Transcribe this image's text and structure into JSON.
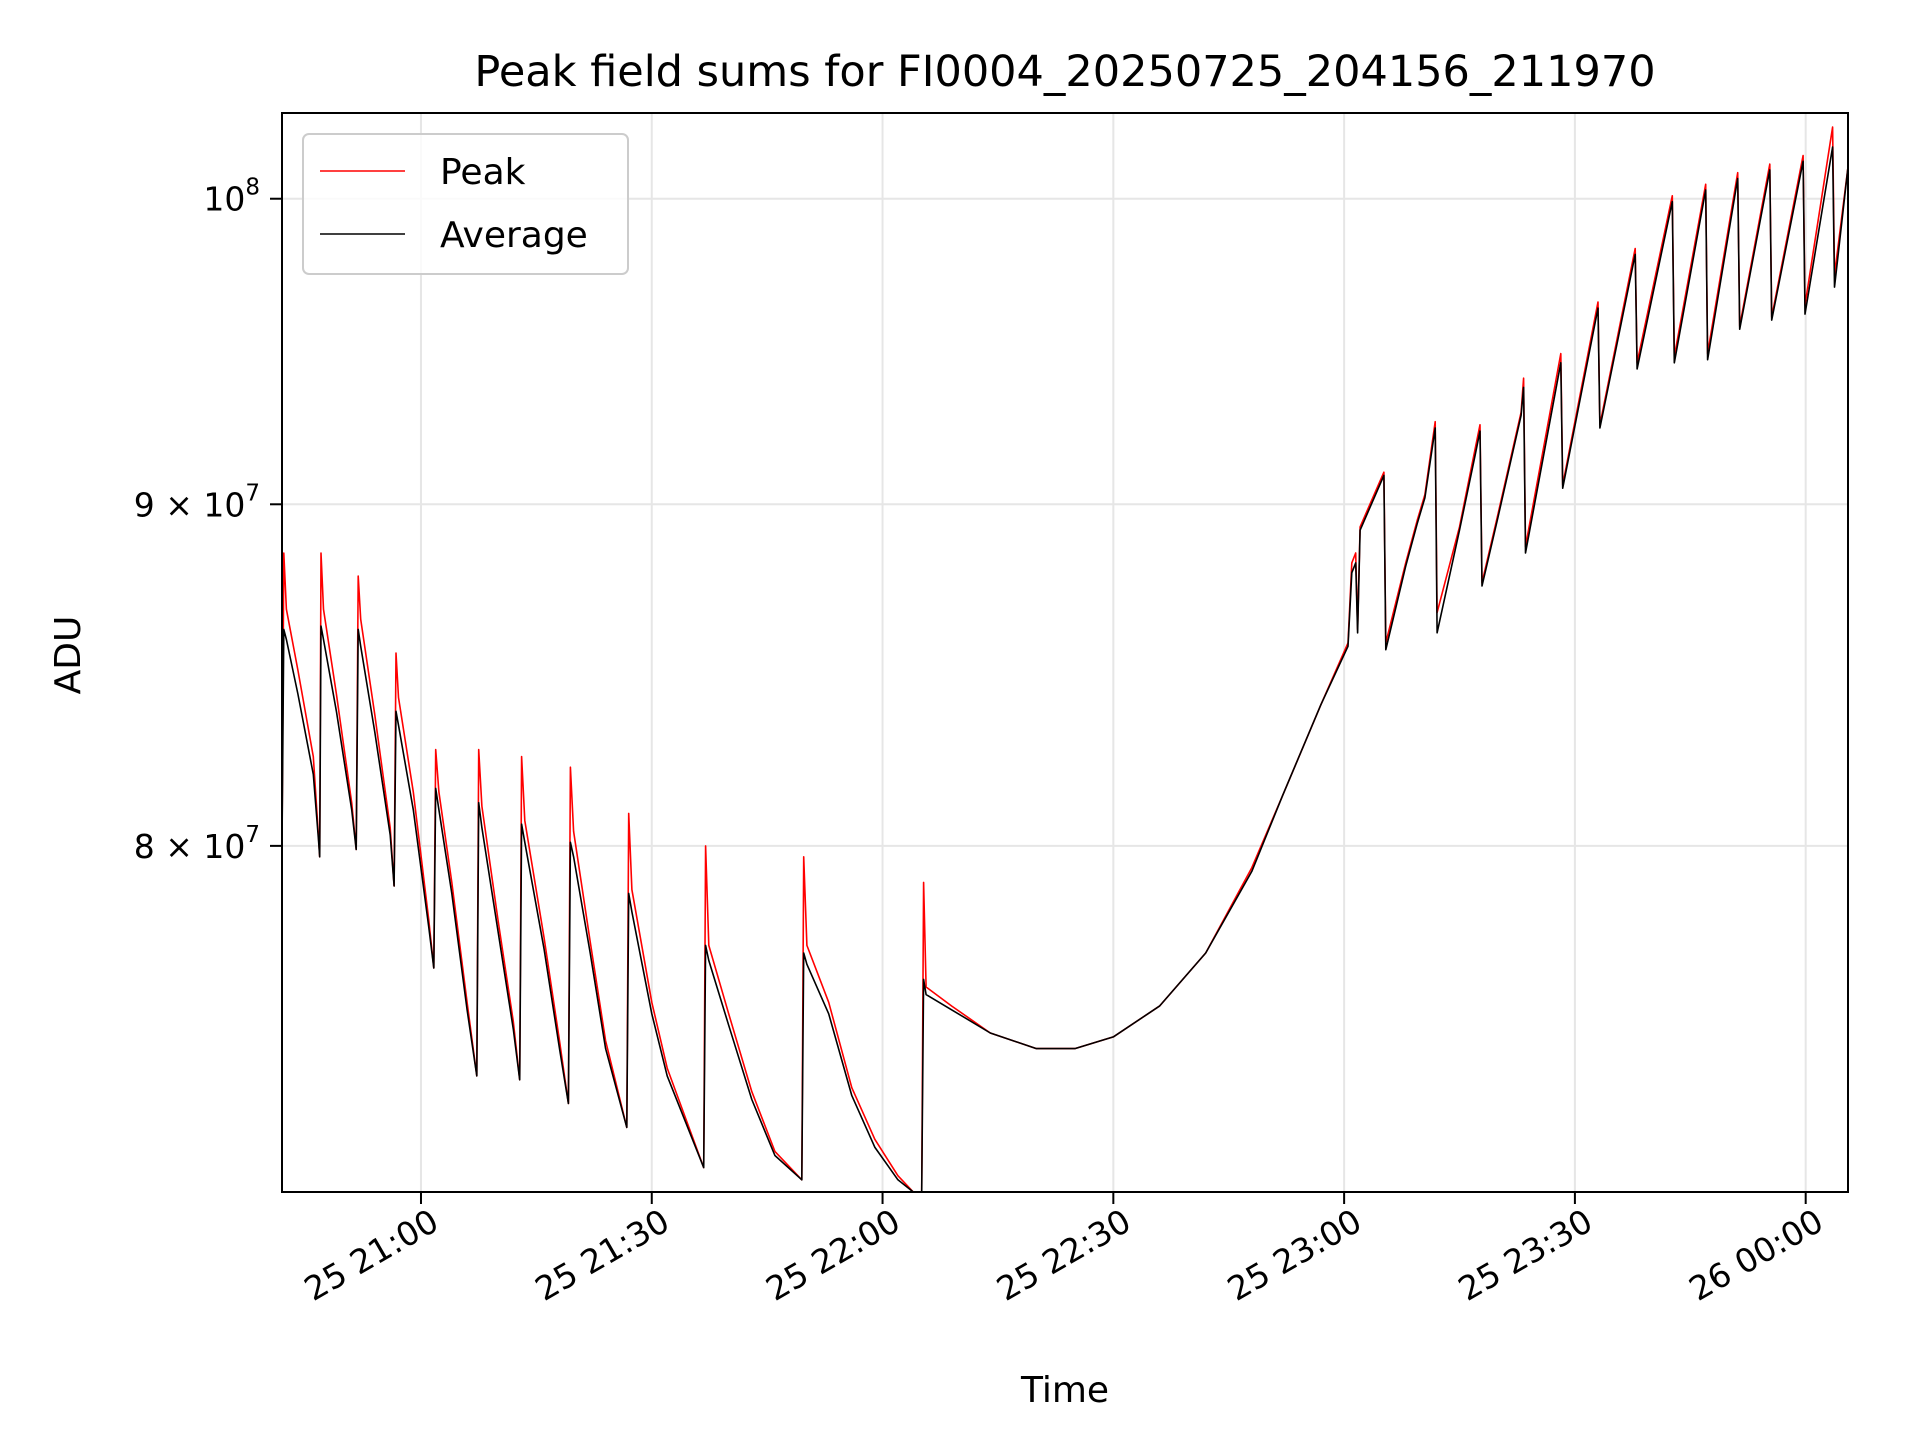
{
  "chart_data": {
    "type": "line",
    "title": "Peak field sums for FI0004_20250725_204156_211970",
    "xlabel": "Time",
    "ylabel": "ADU",
    "x_tick_labels": [
      "25 21:00",
      "25 21:30",
      "25 22:00",
      "25 22:30",
      "25 23:00",
      "25 23:30",
      "26 00:00"
    ],
    "x_tick_values": [
      "2025-07-25 21:00",
      "2025-07-25 21:30",
      "2025-07-25 22:00",
      "2025-07-25 22:30",
      "2025-07-25 23:00",
      "2025-07-25 23:30",
      "2025-07-26 00:00"
    ],
    "y_tick_labels": [
      {
        "base": "8 × 10",
        "exp": "7",
        "value": 80000000
      },
      {
        "base": "9 × 10",
        "exp": "7",
        "value": 90000000
      },
      {
        "base": "10",
        "exp": "8",
        "value": 100000000
      }
    ],
    "xlim": [
      "2025-07-25 20:41:56",
      "2025-07-26 00:05:30"
    ],
    "ylim": [
      71000000,
      103000000
    ],
    "yscale": "log",
    "grid": true,
    "legend_position": "top-left",
    "series": [
      {
        "name": "Peak",
        "color": "#ff0000",
        "points": [
          [
            "2025-07-25 20:41:56",
            80000000
          ],
          [
            "2025-07-25 20:42:10",
            88500000
          ],
          [
            "2025-07-25 20:42:30",
            86800000
          ],
          [
            "2025-07-25 20:44:00",
            85000000
          ],
          [
            "2025-07-25 20:46:00",
            82500000
          ],
          [
            "2025-07-25 20:46:40",
            80300000
          ],
          [
            "2025-07-25 20:46:50",
            79700000
          ],
          [
            "2025-07-25 20:47:00",
            88500000
          ],
          [
            "2025-07-25 20:47:20",
            86800000
          ],
          [
            "2025-07-25 20:49:00",
            84300000
          ],
          [
            "2025-07-25 20:51:00",
            81200000
          ],
          [
            "2025-07-25 20:51:35",
            79900000
          ],
          [
            "2025-07-25 20:51:50",
            87800000
          ],
          [
            "2025-07-25 20:52:10",
            86500000
          ],
          [
            "2025-07-25 20:54:00",
            83700000
          ],
          [
            "2025-07-25 20:56:00",
            80500000
          ],
          [
            "2025-07-25 20:56:30",
            78900000
          ],
          [
            "2025-07-25 20:56:45",
            85500000
          ],
          [
            "2025-07-25 20:57:05",
            84200000
          ],
          [
            "2025-07-25 20:59:00",
            81500000
          ],
          [
            "2025-07-25 21:01:00",
            78000000
          ],
          [
            "2025-07-25 21:01:40",
            76700000
          ],
          [
            "2025-07-25 21:01:55",
            82700000
          ],
          [
            "2025-07-25 21:02:20",
            81500000
          ],
          [
            "2025-07-25 21:04:00",
            79000000
          ],
          [
            "2025-07-25 21:06:00",
            75800000
          ],
          [
            "2025-07-25 21:07:15",
            73900000
          ],
          [
            "2025-07-25 21:07:30",
            82700000
          ],
          [
            "2025-07-25 21:07:55",
            81100000
          ],
          [
            "2025-07-25 21:10:00",
            78000000
          ],
          [
            "2025-07-25 21:12:00",
            75300000
          ],
          [
            "2025-07-25 21:12:50",
            73800000
          ],
          [
            "2025-07-25 21:13:05",
            82500000
          ],
          [
            "2025-07-25 21:13:30",
            80700000
          ],
          [
            "2025-07-25 21:16:00",
            77500000
          ],
          [
            "2025-07-25 21:18:00",
            74800000
          ],
          [
            "2025-07-25 21:19:10",
            73200000
          ],
          [
            "2025-07-25 21:19:25",
            82200000
          ],
          [
            "2025-07-25 21:19:50",
            80400000
          ],
          [
            "2025-07-25 21:22:00",
            77400000
          ],
          [
            "2025-07-25 21:24:00",
            74800000
          ],
          [
            "2025-07-25 21:26:45",
            72600000
          ],
          [
            "2025-07-25 21:27:00",
            80900000
          ],
          [
            "2025-07-25 21:27:25",
            78800000
          ],
          [
            "2025-07-25 21:30:00",
            75800000
          ],
          [
            "2025-07-25 21:32:00",
            74100000
          ],
          [
            "2025-07-25 21:36:45",
            71600000
          ],
          [
            "2025-07-25 21:37:00",
            80000000
          ],
          [
            "2025-07-25 21:37:25",
            77300000
          ],
          [
            "2025-07-25 21:40:00",
            75500000
          ],
          [
            "2025-07-25 21:43:00",
            73500000
          ],
          [
            "2025-07-25 21:46:00",
            72000000
          ],
          [
            "2025-07-25 21:49:30",
            71300000
          ],
          [
            "2025-07-25 21:49:45",
            79700000
          ],
          [
            "2025-07-25 21:50:10",
            77300000
          ],
          [
            "2025-07-25 21:53:00",
            75800000
          ],
          [
            "2025-07-25 21:56:00",
            73600000
          ],
          [
            "2025-07-25 21:59:00",
            72300000
          ],
          [
            "2025-07-25 22:02:00",
            71400000
          ],
          [
            "2025-07-25 22:04:00",
            71000000
          ],
          [
            "2025-07-25 22:05:05",
            71000000
          ],
          [
            "2025-07-25 22:05:20",
            79000000
          ],
          [
            "2025-07-25 22:05:40",
            76200000
          ],
          [
            "2025-07-25 22:09:00",
            75700000
          ],
          [
            "2025-07-25 22:14:00",
            75000000
          ],
          [
            "2025-07-25 22:20:00",
            74600000
          ],
          [
            "2025-07-25 22:25:00",
            74600000
          ],
          [
            "2025-07-25 22:30:00",
            74900000
          ],
          [
            "2025-07-25 22:36:00",
            75700000
          ],
          [
            "2025-07-25 22:42:00",
            77100000
          ],
          [
            "2025-07-25 22:48:00",
            79400000
          ],
          [
            "2025-07-25 22:52:00",
            81400000
          ],
          [
            "2025-07-25 22:57:00",
            84000000
          ],
          [
            "2025-07-25 23:00:30",
            85800000
          ],
          [
            "2025-07-25 23:01:00",
            88200000
          ],
          [
            "2025-07-25 23:01:30",
            88500000
          ],
          [
            "2025-07-25 23:01:45",
            86200000
          ],
          [
            "2025-07-25 23:02:05",
            89300000
          ],
          [
            "2025-07-25 23:05:10",
            91000000
          ],
          [
            "2025-07-25 23:05:25",
            85800000
          ],
          [
            "2025-07-25 23:08:00",
            88200000
          ],
          [
            "2025-07-25 23:09:30",
            89500000
          ],
          [
            "2025-07-25 23:10:30",
            90300000
          ],
          [
            "2025-07-25 23:11:50",
            92600000
          ],
          [
            "2025-07-25 23:12:05",
            86700000
          ],
          [
            "2025-07-25 23:15:00",
            89300000
          ],
          [
            "2025-07-25 23:17:00",
            91700000
          ],
          [
            "2025-07-25 23:17:40",
            92500000
          ],
          [
            "2025-07-25 23:17:55",
            87600000
          ],
          [
            "2025-07-25 23:20:00",
            89700000
          ],
          [
            "2025-07-25 23:23:00",
            92900000
          ],
          [
            "2025-07-25 23:23:20",
            94000000
          ],
          [
            "2025-07-25 23:23:35",
            88700000
          ],
          [
            "2025-07-25 23:28:10",
            94800000
          ],
          [
            "2025-07-25 23:28:25",
            90600000
          ],
          [
            "2025-07-25 23:33:00",
            96500000
          ],
          [
            "2025-07-25 23:33:15",
            92500000
          ],
          [
            "2025-07-25 23:37:50",
            98300000
          ],
          [
            "2025-07-25 23:38:05",
            94500000
          ],
          [
            "2025-07-25 23:42:40",
            100100000
          ],
          [
            "2025-07-25 23:42:55",
            94700000
          ],
          [
            "2025-07-25 23:47:00",
            100500000
          ],
          [
            "2025-07-25 23:47:15",
            94800000
          ],
          [
            "2025-07-25 23:51:10",
            100900000
          ],
          [
            "2025-07-25 23:51:25",
            95700000
          ],
          [
            "2025-07-25 23:55:20",
            101200000
          ],
          [
            "2025-07-25 23:55:35",
            96000000
          ],
          [
            "2025-07-25 23:59:40",
            101500000
          ],
          [
            "2025-07-25 23:59:55",
            96400000
          ],
          [
            "2025-07-26 00:03:30",
            102500000
          ],
          [
            "2025-07-26 00:03:45",
            97400000
          ],
          [
            "2025-07-26 00:05:30",
            101100000
          ]
        ]
      },
      {
        "name": "Average",
        "color": "#000000",
        "points": [
          [
            "2025-07-25 20:41:56",
            80000000
          ],
          [
            "2025-07-25 20:42:10",
            86200000
          ],
          [
            "2025-07-25 20:42:30",
            85900000
          ],
          [
            "2025-07-25 20:44:00",
            84300000
          ],
          [
            "2025-07-25 20:46:00",
            82000000
          ],
          [
            "2025-07-25 20:46:40",
            80200000
          ],
          [
            "2025-07-25 20:46:50",
            79700000
          ],
          [
            "2025-07-25 20:47:00",
            86300000
          ],
          [
            "2025-07-25 20:47:20",
            85900000
          ],
          [
            "2025-07-25 20:49:00",
            83800000
          ],
          [
            "2025-07-25 20:51:00",
            81000000
          ],
          [
            "2025-07-25 20:51:35",
            79900000
          ],
          [
            "2025-07-25 20:51:50",
            86200000
          ],
          [
            "2025-07-25 20:52:10",
            85700000
          ],
          [
            "2025-07-25 20:54:00",
            83200000
          ],
          [
            "2025-07-25 20:56:00",
            80300000
          ],
          [
            "2025-07-25 20:56:30",
            78900000
          ],
          [
            "2025-07-25 20:56:45",
            83800000
          ],
          [
            "2025-07-25 20:57:05",
            83400000
          ],
          [
            "2025-07-25 20:59:00",
            81000000
          ],
          [
            "2025-07-25 21:01:00",
            77800000
          ],
          [
            "2025-07-25 21:01:40",
            76700000
          ],
          [
            "2025-07-25 21:01:55",
            81600000
          ],
          [
            "2025-07-25 21:02:20",
            81000000
          ],
          [
            "2025-07-25 21:04:00",
            78700000
          ],
          [
            "2025-07-25 21:06:00",
            75600000
          ],
          [
            "2025-07-25 21:07:15",
            73900000
          ],
          [
            "2025-07-25 21:07:30",
            81200000
          ],
          [
            "2025-07-25 21:07:55",
            80500000
          ],
          [
            "2025-07-25 21:10:00",
            77700000
          ],
          [
            "2025-07-25 21:12:00",
            75100000
          ],
          [
            "2025-07-25 21:12:50",
            73800000
          ],
          [
            "2025-07-25 21:13:05",
            80600000
          ],
          [
            "2025-07-25 21:13:30",
            80100000
          ],
          [
            "2025-07-25 21:16:00",
            77200000
          ],
          [
            "2025-07-25 21:18:00",
            74600000
          ],
          [
            "2025-07-25 21:19:10",
            73200000
          ],
          [
            "2025-07-25 21:19:25",
            80100000
          ],
          [
            "2025-07-25 21:19:50",
            79700000
          ],
          [
            "2025-07-25 21:22:00",
            77100000
          ],
          [
            "2025-07-25 21:24:00",
            74600000
          ],
          [
            "2025-07-25 21:26:45",
            72600000
          ],
          [
            "2025-07-25 21:27:00",
            78700000
          ],
          [
            "2025-07-25 21:27:25",
            78200000
          ],
          [
            "2025-07-25 21:30:00",
            75500000
          ],
          [
            "2025-07-25 21:32:00",
            73900000
          ],
          [
            "2025-07-25 21:36:45",
            71600000
          ],
          [
            "2025-07-25 21:37:00",
            77300000
          ],
          [
            "2025-07-25 21:37:25",
            76900000
          ],
          [
            "2025-07-25 21:40:00",
            75200000
          ],
          [
            "2025-07-25 21:43:00",
            73300000
          ],
          [
            "2025-07-25 21:46:00",
            71900000
          ],
          [
            "2025-07-25 21:49:30",
            71300000
          ],
          [
            "2025-07-25 21:49:45",
            77100000
          ],
          [
            "2025-07-25 21:50:10",
            76800000
          ],
          [
            "2025-07-25 21:53:00",
            75500000
          ],
          [
            "2025-07-25 21:56:00",
            73400000
          ],
          [
            "2025-07-25 21:59:00",
            72100000
          ],
          [
            "2025-07-25 22:02:00",
            71300000
          ],
          [
            "2025-07-25 22:04:00",
            71000000
          ],
          [
            "2025-07-25 22:05:05",
            71000000
          ],
          [
            "2025-07-25 22:05:20",
            76400000
          ],
          [
            "2025-07-25 22:05:40",
            76000000
          ],
          [
            "2025-07-25 22:09:00",
            75600000
          ],
          [
            "2025-07-25 22:14:00",
            75000000
          ],
          [
            "2025-07-25 22:20:00",
            74600000
          ],
          [
            "2025-07-25 22:25:00",
            74600000
          ],
          [
            "2025-07-25 22:30:00",
            74900000
          ],
          [
            "2025-07-25 22:36:00",
            75700000
          ],
          [
            "2025-07-25 22:42:00",
            77100000
          ],
          [
            "2025-07-25 22:48:00",
            79300000
          ],
          [
            "2025-07-25 22:52:00",
            81400000
          ],
          [
            "2025-07-25 22:57:00",
            84000000
          ],
          [
            "2025-07-25 23:00:30",
            85700000
          ],
          [
            "2025-07-25 23:01:00",
            87900000
          ],
          [
            "2025-07-25 23:01:30",
            88200000
          ],
          [
            "2025-07-25 23:01:45",
            86100000
          ],
          [
            "2025-07-25 23:02:05",
            89200000
          ],
          [
            "2025-07-25 23:05:10",
            90900000
          ],
          [
            "2025-07-25 23:05:25",
            85600000
          ],
          [
            "2025-07-25 23:08:00",
            88100000
          ],
          [
            "2025-07-25 23:09:30",
            89400000
          ],
          [
            "2025-07-25 23:10:30",
            90200000
          ],
          [
            "2025-07-25 23:11:50",
            92400000
          ],
          [
            "2025-07-25 23:12:05",
            86100000
          ],
          [
            "2025-07-25 23:15:00",
            89200000
          ],
          [
            "2025-07-25 23:17:00",
            91500000
          ],
          [
            "2025-07-25 23:17:40",
            92300000
          ],
          [
            "2025-07-25 23:17:55",
            87500000
          ],
          [
            "2025-07-25 23:20:00",
            89600000
          ],
          [
            "2025-07-25 23:23:00",
            92800000
          ],
          [
            "2025-07-25 23:23:20",
            93700000
          ],
          [
            "2025-07-25 23:23:35",
            88500000
          ],
          [
            "2025-07-25 23:28:10",
            94500000
          ],
          [
            "2025-07-25 23:28:25",
            90500000
          ],
          [
            "2025-07-25 23:33:00",
            96300000
          ],
          [
            "2025-07-25 23:33:15",
            92400000
          ],
          [
            "2025-07-25 23:37:50",
            98100000
          ],
          [
            "2025-07-25 23:38:05",
            94300000
          ],
          [
            "2025-07-25 23:42:40",
            99900000
          ],
          [
            "2025-07-25 23:42:55",
            94500000
          ],
          [
            "2025-07-25 23:47:00",
            100300000
          ],
          [
            "2025-07-25 23:47:15",
            94600000
          ],
          [
            "2025-07-25 23:51:10",
            100700000
          ],
          [
            "2025-07-25 23:51:25",
            95600000
          ],
          [
            "2025-07-25 23:55:20",
            101000000
          ],
          [
            "2025-07-25 23:55:35",
            95900000
          ],
          [
            "2025-07-25 23:59:40",
            101300000
          ],
          [
            "2025-07-25 23:59:55",
            96100000
          ],
          [
            "2025-07-26 00:03:30",
            101800000
          ],
          [
            "2025-07-26 00:03:45",
            97000000
          ],
          [
            "2025-07-26 00:05:30",
            101100000
          ]
        ]
      }
    ]
  }
}
